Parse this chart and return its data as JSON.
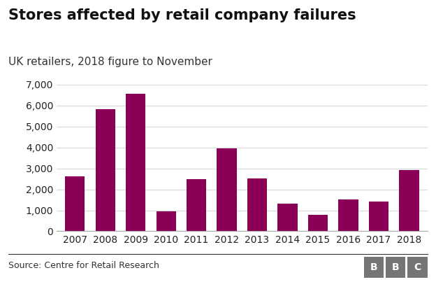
{
  "title": "Stores affected by retail company failures",
  "subtitle": "UK retailers, 2018 figure to November",
  "source": "Source: Centre for Retail Research",
  "bbc_label": "BBC",
  "years": [
    "2007",
    "2008",
    "2009",
    "2010",
    "2011",
    "2012",
    "2013",
    "2014",
    "2015",
    "2016",
    "2017",
    "2018"
  ],
  "values": [
    2620,
    5843,
    6554,
    960,
    2487,
    3961,
    2504,
    1312,
    773,
    1521,
    1415,
    2917
  ],
  "bar_color": "#8B0057",
  "background_color": "#ffffff",
  "ylim": [
    0,
    7000
  ],
  "yticks": [
    0,
    1000,
    2000,
    3000,
    4000,
    5000,
    6000,
    7000
  ],
  "title_fontsize": 15,
  "subtitle_fontsize": 11,
  "tick_fontsize": 10,
  "source_fontsize": 9,
  "bbc_box_color": "#757575"
}
